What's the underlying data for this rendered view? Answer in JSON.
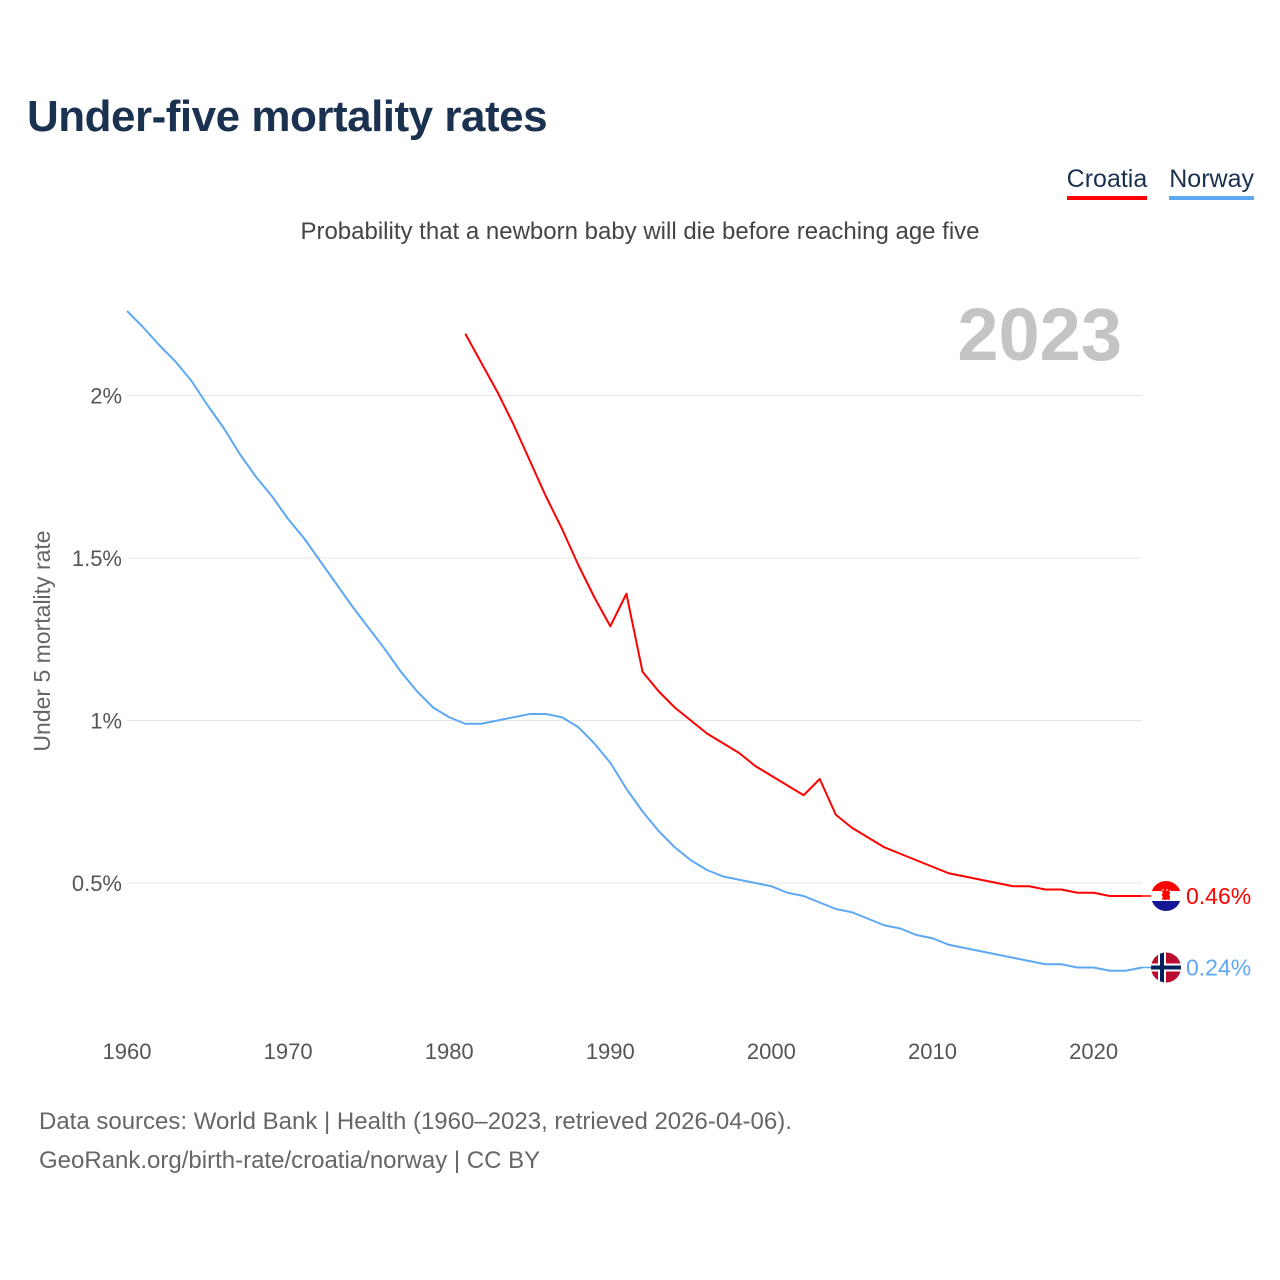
{
  "title": "Under-five mortality rates",
  "subtitle": "Probability that a newborn baby will die before reaching age five",
  "year_label": "2023",
  "legend": [
    {
      "name": "Croatia",
      "color": "#ff0000"
    },
    {
      "name": "Norway",
      "color": "#5ea8f2"
    }
  ],
  "source_line1": "Data sources: World Bank | Health (1960–2023, retrieved 2026-04-06).",
  "source_line2": "GeoRank.org/birth-rate/croatia/norway | CC BY",
  "chart_data": {
    "type": "line",
    "title": "Under-five mortality rates",
    "ylabel": "Under 5 mortality rate",
    "xlabel": "",
    "xlim": [
      1960,
      2023
    ],
    "ylim": [
      0,
      2.3
    ],
    "xticks": [
      1960,
      1970,
      1980,
      1990,
      2000,
      2010,
      2020
    ],
    "xtick_labels": [
      "1960",
      "1970",
      "1980",
      "1990",
      "2000",
      "2010",
      "2020"
    ],
    "yticks": [
      0.5,
      1,
      1.5,
      2
    ],
    "ytick_labels": [
      "0.5%",
      "1%",
      "1.5%",
      "2%"
    ],
    "grid": true,
    "legend_position": "top-right",
    "series": [
      {
        "name": "Croatia",
        "color": "#ff0000",
        "end_label": "0.46%",
        "flag": "croatia-flag",
        "start": 1981,
        "values": [
          2.19,
          2.1,
          2.01,
          1.91,
          1.8,
          1.69,
          1.59,
          1.48,
          1.38,
          1.29,
          1.39,
          1.15,
          1.09,
          1.04,
          1.0,
          0.96,
          0.93,
          0.9,
          0.86,
          0.83,
          0.8,
          0.77,
          0.82,
          0.71,
          0.67,
          0.64,
          0.61,
          0.59,
          0.57,
          0.55,
          0.53,
          0.52,
          0.51,
          0.5,
          0.49,
          0.49,
          0.48,
          0.48,
          0.47,
          0.47,
          0.46,
          0.46,
          0.46
        ]
      },
      {
        "name": "Norway",
        "color": "#5ea8f2",
        "end_label": "0.24%",
        "flag": "norway-flag",
        "start": 1960,
        "values": [
          2.26,
          2.21,
          2.155,
          2.105,
          2.045,
          1.97,
          1.9,
          1.82,
          1.75,
          1.69,
          1.62,
          1.56,
          1.49,
          1.42,
          1.35,
          1.285,
          1.22,
          1.15,
          1.09,
          1.04,
          1.01,
          0.99,
          0.99,
          1.0,
          1.01,
          1.02,
          1.02,
          1.01,
          0.98,
          0.93,
          0.87,
          0.79,
          0.72,
          0.66,
          0.61,
          0.57,
          0.54,
          0.52,
          0.51,
          0.5,
          0.49,
          0.47,
          0.46,
          0.44,
          0.42,
          0.41,
          0.39,
          0.37,
          0.36,
          0.34,
          0.33,
          0.31,
          0.3,
          0.29,
          0.28,
          0.27,
          0.26,
          0.25,
          0.25,
          0.24,
          0.24,
          0.23,
          0.23,
          0.24
        ]
      }
    ]
  }
}
